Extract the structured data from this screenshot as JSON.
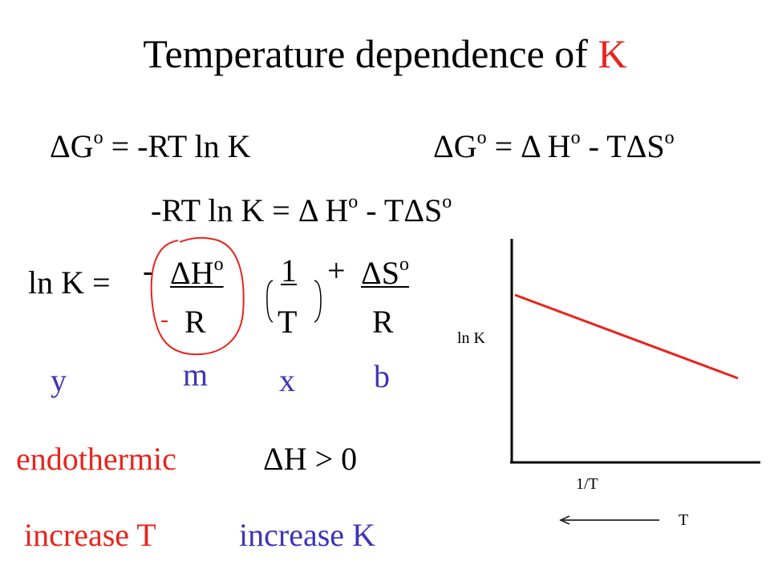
{
  "title": {
    "text": "Temperature dependence of ",
    "highlight": "K"
  },
  "eq1": {
    "prefix": "ΔG",
    "sup": "o",
    "rest": " = -RT ln K"
  },
  "eq2": {
    "prefix": "ΔG",
    "sup1": "o",
    "mid": " = Δ H",
    "sup2": "o",
    "mid2": " - TΔS",
    "sup3": "o"
  },
  "eq3": {
    "text": "-RT ln K = Δ H",
    "sup1": "o",
    "mid": " - TΔS",
    "sup2": "o"
  },
  "lnk_eq": {
    "lhs": "ln K =",
    "minus": "-",
    "num1": "ΔH",
    "num1_sup": "o",
    "num2": "1",
    "plus": "+",
    "num3": "ΔS",
    "num3_sup": "o",
    "den_minus": "-",
    "den1": "R",
    "den2": "T",
    "den3": "R"
  },
  "labels": {
    "y": "y",
    "m": "m",
    "x": "x",
    "b": "b"
  },
  "endo": {
    "word": "endothermic",
    "cond": "ΔH > 0"
  },
  "increase": {
    "t": "increase T",
    "k": "increase K"
  },
  "graph": {
    "ylabel": "ln K",
    "xlabel": "1/T",
    "arrow_label": "T"
  },
  "colors": {
    "red": "#e8241c",
    "blue": "#3c34b8",
    "black": "#000000"
  }
}
